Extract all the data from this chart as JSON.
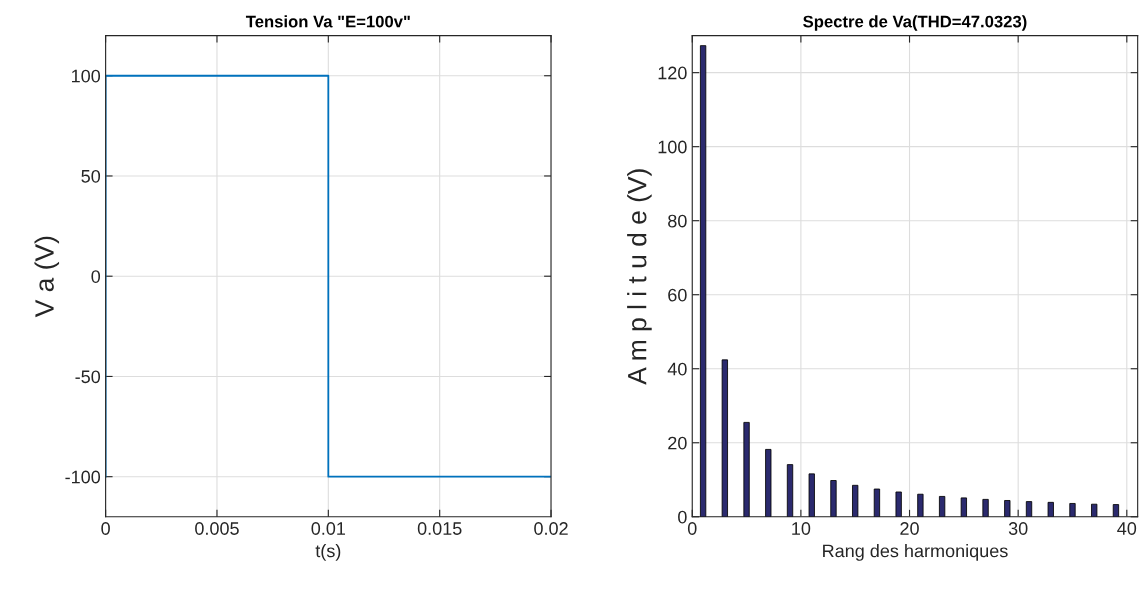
{
  "chart_data": [
    {
      "type": "line",
      "title": "Tension Va \"E=100v\"",
      "xlabel": "t(s)",
      "ylabel": "V a (V)",
      "series": [
        {
          "color": "#0072bd",
          "x": [
            0,
            0,
            0.01,
            0.01,
            0.02
          ],
          "values": [
            -100,
            100,
            100,
            -100,
            -100
          ]
        }
      ],
      "xlim": [
        0,
        0.02
      ],
      "xticks": [
        0,
        0.005,
        0.01,
        0.015,
        0.02
      ],
      "ylim": [
        -120,
        120
      ],
      "yticks": [
        {
          "value": -100,
          "label": "-100"
        },
        {
          "value": -50,
          "label": "-50"
        },
        0,
        50,
        100
      ],
      "grid": true,
      "marker": "none",
      "line_style": "solid"
    },
    {
      "type": "bar",
      "title": "Spectre de Va(THD=47.0323)",
      "xlabel": "Rang des harmoniques",
      "ylabel": "A m p l i t u d e (V)",
      "x": [
        1,
        3,
        5,
        7,
        9,
        11,
        13,
        15,
        17,
        19,
        21,
        23,
        25,
        27,
        29,
        31,
        33,
        35,
        37,
        39
      ],
      "values": [
        127.3,
        42.4,
        25.5,
        18.2,
        14.1,
        11.6,
        9.8,
        8.5,
        7.5,
        6.7,
        6.1,
        5.5,
        5.1,
        4.7,
        4.4,
        4.1,
        3.9,
        3.6,
        3.4,
        3.3
      ],
      "color": "#2b2a6e",
      "xlim": [
        0,
        41
      ],
      "xticks": [
        0,
        10,
        20,
        30,
        40
      ],
      "ylim": [
        0,
        130
      ],
      "yticks": [
        0,
        20,
        40,
        60,
        80,
        100,
        120
      ],
      "grid": true
    }
  ]
}
